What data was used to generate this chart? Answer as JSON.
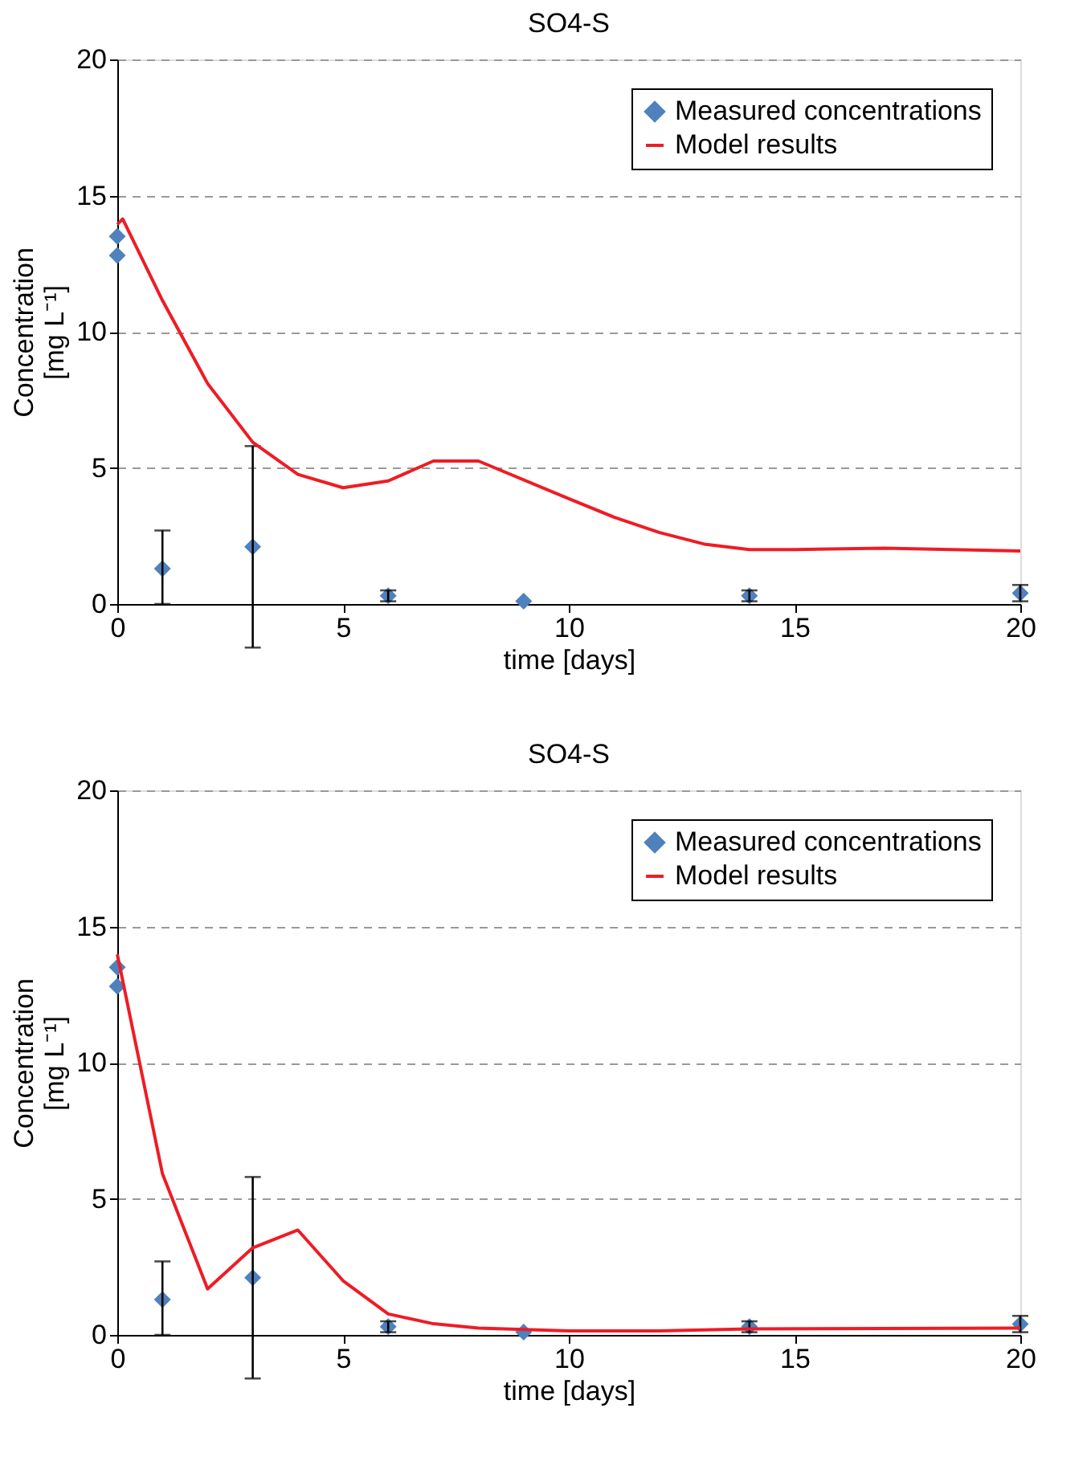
{
  "chart_data": [
    {
      "type": "line",
      "title": "SO4-S",
      "xlabel": "time [days]",
      "ylabel": "Concentration\n[mg L⁻¹]",
      "xlim": [
        0,
        20
      ],
      "ylim": [
        0,
        20
      ],
      "xticks": [
        0,
        5,
        10,
        15,
        20
      ],
      "yticks": [
        0,
        5,
        10,
        15,
        20
      ],
      "grid": "y",
      "legend": "top right",
      "series": [
        {
          "name": "Measured concentrations",
          "type": "scatter",
          "marker": "diamond",
          "color": "#4f81bd",
          "x": [
            0,
            0,
            1,
            3,
            6,
            9,
            14,
            20
          ],
          "values": [
            13.5,
            12.8,
            1.3,
            2.1,
            0.3,
            0.1,
            0.3,
            0.4
          ],
          "errors": [
            null,
            null,
            [
              0,
              2.7
            ],
            [
              -1.6,
              5.8
            ],
            0.2,
            null,
            0.2,
            0.3
          ]
        },
        {
          "name": "Model results",
          "color": "#ee1c25",
          "line_style": "solid",
          "x": [
            0,
            0.12,
            1,
            2,
            3,
            4,
            5,
            6,
            7,
            8,
            10,
            11,
            12,
            13,
            14,
            15,
            17,
            20
          ],
          "values": [
            13.94,
            14.14,
            11.15,
            8.1,
            5.94,
            4.76,
            4.27,
            4.52,
            5.25,
            5.25,
            3.87,
            3.19,
            2.63,
            2.2,
            2.0,
            2.0,
            2.05,
            1.95
          ]
        }
      ]
    },
    {
      "type": "line",
      "title": "SO4-S",
      "xlabel": "time [days]",
      "ylabel": "Concentration\n[mg L⁻¹]",
      "xlim": [
        0,
        20
      ],
      "ylim": [
        0,
        20
      ],
      "xticks": [
        0,
        5,
        10,
        15,
        20
      ],
      "yticks": [
        0,
        5,
        10,
        15,
        20
      ],
      "grid": "y",
      "legend": "top right",
      "series": [
        {
          "name": "Measured concentrations",
          "type": "scatter",
          "marker": "diamond",
          "color": "#4f81bd",
          "x": [
            0,
            0,
            1,
            3,
            6,
            9,
            14,
            20
          ],
          "values": [
            13.5,
            12.8,
            1.3,
            2.1,
            0.3,
            0.1,
            0.3,
            0.4
          ],
          "errors": [
            null,
            null,
            [
              0,
              2.7
            ],
            [
              -1.6,
              5.8
            ],
            0.2,
            null,
            0.2,
            0.3
          ]
        },
        {
          "name": "Model results",
          "color": "#ee1c25",
          "line_style": "solid",
          "x": [
            0,
            1,
            2,
            3,
            4,
            5,
            6,
            7,
            8,
            10,
            12,
            14,
            20
          ],
          "values": [
            13.98,
            5.92,
            1.69,
            3.2,
            3.85,
            1.99,
            0.77,
            0.41,
            0.25,
            0.15,
            0.15,
            0.22,
            0.25
          ]
        }
      ]
    }
  ]
}
